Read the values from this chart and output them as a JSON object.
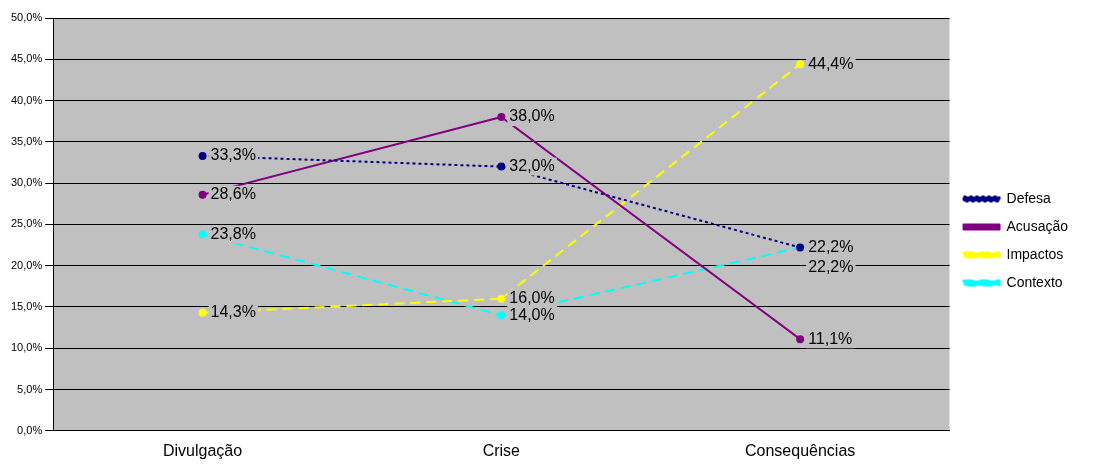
{
  "chart_data": {
    "type": "line",
    "categories": [
      "Divulgação",
      "Crise",
      "Consequências"
    ],
    "series": [
      {
        "name": "Defesa",
        "color": "#000080",
        "line_style": "dotted",
        "values": [
          33.3,
          32.0,
          22.2
        ],
        "value_labels": [
          "33,3%",
          "32,0%",
          "22,2%"
        ]
      },
      {
        "name": "Acusação",
        "color": "#800080",
        "line_style": "solid",
        "values": [
          28.6,
          38.0,
          11.1
        ],
        "value_labels": [
          "28,6%",
          "38,0%",
          "11,1%"
        ]
      },
      {
        "name": "Impactos",
        "color": "#ffff00",
        "line_style": "dashed",
        "values": [
          14.3,
          16.0,
          44.4
        ],
        "value_labels": [
          "14,3%",
          "16,0%",
          "44,4%"
        ]
      },
      {
        "name": "Contexto",
        "color": "#00ffff",
        "line_style": "dashed",
        "values": [
          23.8,
          14.0,
          22.2
        ],
        "value_labels": [
          "23,8%",
          "14,0%",
          "22,2%"
        ]
      }
    ],
    "ylim": [
      0,
      50
    ],
    "yticks": [
      {
        "value": 0,
        "label": "0,0%"
      },
      {
        "value": 5,
        "label": "5,0%"
      },
      {
        "value": 10,
        "label": "10,0%"
      },
      {
        "value": 15,
        "label": "15,0%"
      },
      {
        "value": 20,
        "label": "20,0%"
      },
      {
        "value": 25,
        "label": "25,0%"
      },
      {
        "value": 30,
        "label": "30,0%"
      },
      {
        "value": 35,
        "label": "35,0%"
      },
      {
        "value": 40,
        "label": "40,0%"
      },
      {
        "value": 45,
        "label": "45,0%"
      },
      {
        "value": 50,
        "label": "50,0%"
      }
    ],
    "grid": "y",
    "legend": "right",
    "marker": "circle"
  }
}
